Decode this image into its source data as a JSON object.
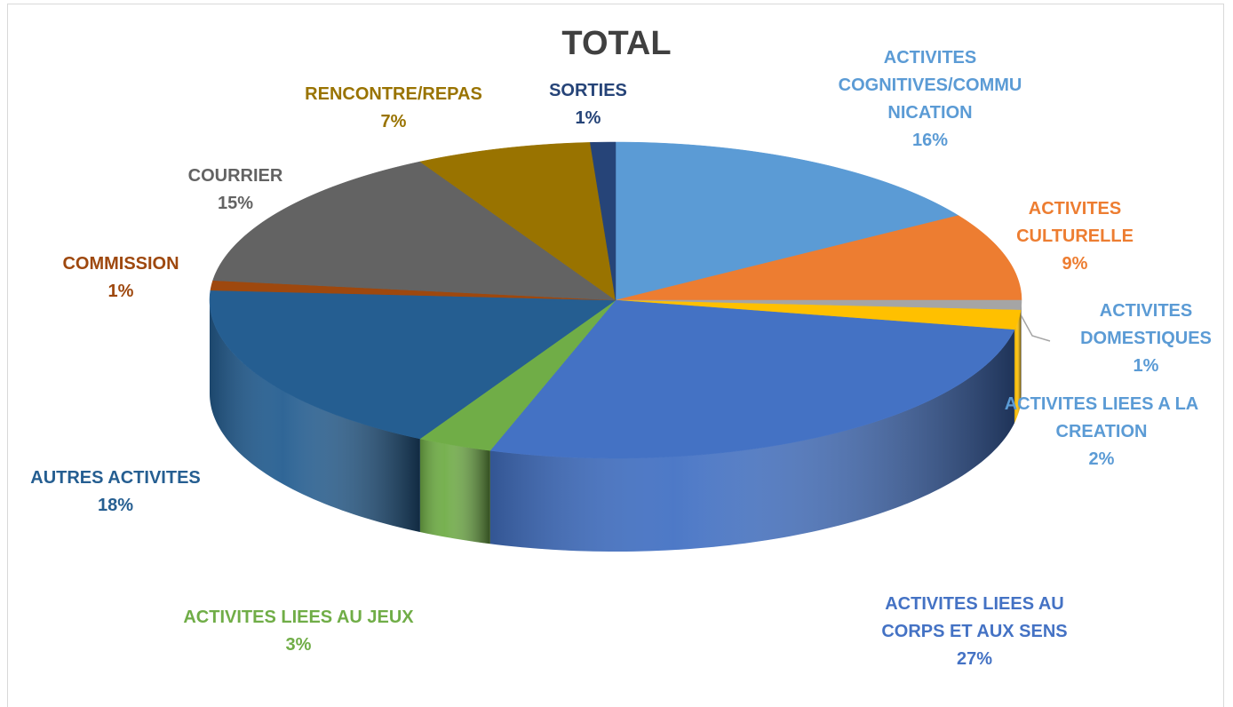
{
  "chart_data": {
    "type": "pie",
    "title": "TOTAL",
    "categories": [
      "ACTIVITES COGNITIVES/COMMUNICATION",
      "ACTIVITES CULTURELLE",
      "ACTIVITES DOMESTIQUES",
      "ACTIVITES LIEES A LA CREATION",
      "ACTIVITES LIEES AU CORPS ET AUX SENS",
      "ACTIVITES LIEES AU JEUX",
      "AUTRES ACTIVITES",
      "COMMISSION",
      "COURRIER",
      "RENCONTRE/REPAS",
      "SORTIES"
    ],
    "values": [
      16,
      9,
      1,
      2,
      27,
      3,
      18,
      1,
      15,
      7,
      1
    ],
    "value_labels": [
      "16%",
      "9%",
      "1%",
      "2%",
      "27%",
      "3%",
      "18%",
      "1%",
      "15%",
      "7%",
      "1%"
    ],
    "colors": [
      "#5b9bd5",
      "#ed7d31",
      "#a5a5a5",
      "#ffc000",
      "#4472c4",
      "#70ad47",
      "#255e91",
      "#9e480e",
      "#636363",
      "#997300",
      "#264478"
    ],
    "label_colors": [
      "#5b9bd5",
      "#ed7d31",
      "#5b9bd5",
      "#5b9bd5",
      "#4472c4",
      "#70ad47",
      "#255e91",
      "#9e480e",
      "#636363",
      "#997300",
      "#264478"
    ]
  }
}
